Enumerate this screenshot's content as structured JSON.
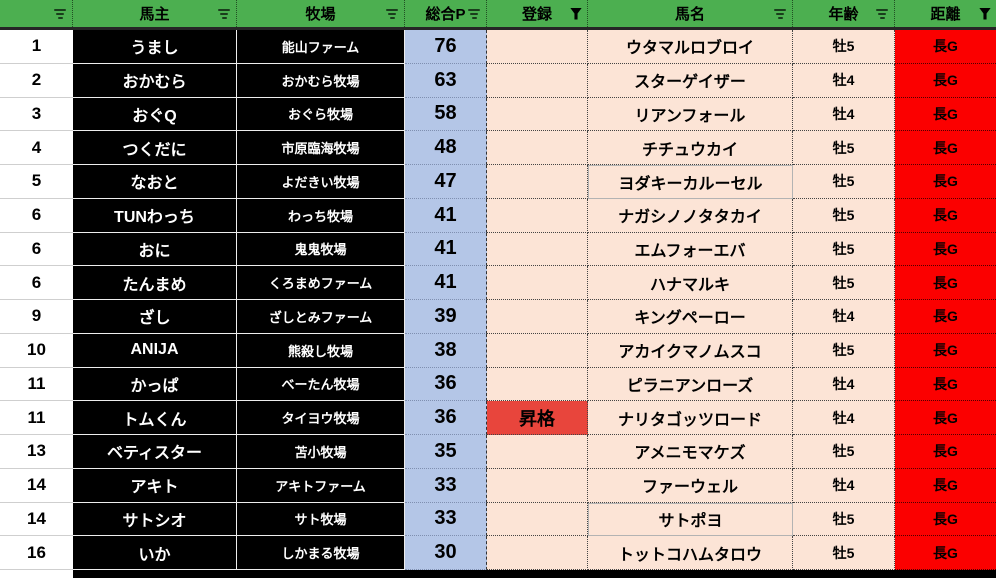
{
  "columns": [
    {
      "key": "rank",
      "label": "",
      "filter": "lines"
    },
    {
      "key": "owner",
      "label": "馬主",
      "filter": "lines"
    },
    {
      "key": "farm",
      "label": "牧場",
      "filter": "lines"
    },
    {
      "key": "points",
      "label": "総合P",
      "filter": "lines"
    },
    {
      "key": "reg",
      "label": "登録",
      "filter": "funnel"
    },
    {
      "key": "horse",
      "label": "馬名",
      "filter": "lines"
    },
    {
      "key": "age",
      "label": "年齢",
      "filter": "lines"
    },
    {
      "key": "dist",
      "label": "距離",
      "filter": "funnel"
    }
  ],
  "rows": [
    {
      "rank": "1",
      "owner": "うまし",
      "farm": "能山ファーム",
      "points": "76",
      "reg": "",
      "horse": "ウタマルロブロイ",
      "age": "牡5",
      "dist": "長G"
    },
    {
      "rank": "2",
      "owner": "おかむら",
      "farm": "おかむら牧場",
      "points": "63",
      "reg": "",
      "horse": "スターゲイザー",
      "age": "牡4",
      "dist": "長G"
    },
    {
      "rank": "3",
      "owner": "おぐQ",
      "farm": "おぐら牧場",
      "points": "58",
      "reg": "",
      "horse": "リアンフォール",
      "age": "牡4",
      "dist": "長G"
    },
    {
      "rank": "4",
      "owner": "つくだに",
      "farm": "市原臨海牧場",
      "points": "48",
      "reg": "",
      "horse": "チチュウカイ",
      "age": "牡5",
      "dist": "長G"
    },
    {
      "rank": "5",
      "owner": "なおと",
      "farm": "よだきい牧場",
      "points": "47",
      "reg": "",
      "horse": "ヨダキーカルーセル",
      "age": "牡5",
      "dist": "長G",
      "horse_gray_border": true
    },
    {
      "rank": "6",
      "owner": "TUNわっち",
      "farm": "わっち牧場",
      "points": "41",
      "reg": "",
      "horse": "ナガシノノタタカイ",
      "age": "牡5",
      "dist": "長G"
    },
    {
      "rank": "6",
      "owner": "おに",
      "farm": "鬼鬼牧場",
      "points": "41",
      "reg": "",
      "horse": "エムフォーエバ",
      "age": "牡5",
      "dist": "長G"
    },
    {
      "rank": "6",
      "owner": "たんまめ",
      "farm": "くろまめファーム",
      "points": "41",
      "reg": "",
      "horse": "ハナマルキ",
      "age": "牡5",
      "dist": "長G"
    },
    {
      "rank": "9",
      "owner": "ざし",
      "farm": "ざしとみファーム",
      "points": "39",
      "reg": "",
      "horse": "キングペーロー",
      "age": "牡4",
      "dist": "長G"
    },
    {
      "rank": "10",
      "owner": "ANIJA",
      "farm": "熊殺し牧場",
      "points": "38",
      "reg": "",
      "horse": "アカイクマノムスコ",
      "age": "牡5",
      "dist": "長G"
    },
    {
      "rank": "11",
      "owner": "かっぱ",
      "farm": "べーたん牧場",
      "points": "36",
      "reg": "",
      "horse": "ピラニアンローズ",
      "age": "牡4",
      "dist": "長G"
    },
    {
      "rank": "11",
      "owner": "トムくん",
      "farm": "タイヨウ牧場",
      "points": "36",
      "reg": "昇格",
      "horse": "ナリタゴッツロード",
      "age": "牡4",
      "dist": "長G",
      "reg_promoted": true
    },
    {
      "rank": "13",
      "owner": "ベティスター",
      "farm": "苫小牧場",
      "points": "35",
      "reg": "",
      "horse": "アメニモマケズ",
      "age": "牡5",
      "dist": "長G"
    },
    {
      "rank": "14",
      "owner": "アキト",
      "farm": "アキトファーム",
      "points": "33",
      "reg": "",
      "horse": "ファーウェル",
      "age": "牡4",
      "dist": "長G"
    },
    {
      "rank": "14",
      "owner": "サトシオ",
      "farm": "サト牧場",
      "points": "33",
      "reg": "",
      "horse": "サトポヨ",
      "age": "牡5",
      "dist": "長G",
      "horse_gray_border": true
    },
    {
      "rank": "16",
      "owner": "いか",
      "farm": "しかまる牧場",
      "points": "30",
      "reg": "",
      "horse": "トットコハムタロウ",
      "age": "牡5",
      "dist": "長G"
    }
  ],
  "colors": {
    "header_green": "#4CAF50",
    "points_blue": "#B4C6E7",
    "entry_peach": "#FCE4D6",
    "distance_red": "#FB0000",
    "promotion_red": "#E8453C",
    "owner_cell_black": "#000000"
  }
}
